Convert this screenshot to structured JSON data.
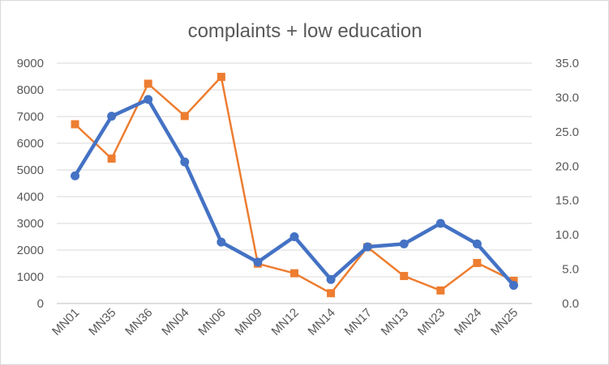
{
  "chart_data": {
    "type": "line",
    "title": "complaints + low education",
    "categories": [
      "MN01",
      "MN35",
      "MN36",
      "MN04",
      "MN06",
      "MN09",
      "MN12",
      "MN14",
      "MN17",
      "MN13",
      "MN23",
      "MN24",
      "MN25"
    ],
    "series": [
      {
        "axis": "left",
        "color": "#4472C4",
        "marker": "circle",
        "values": [
          4780,
          7010,
          7640,
          5300,
          2300,
          1550,
          2500,
          900,
          2120,
          2230,
          3000,
          2230,
          680
        ]
      },
      {
        "axis": "right",
        "color": "#ED7D31",
        "marker": "square",
        "values": [
          26.1,
          21.1,
          32.0,
          27.3,
          33.0,
          5.8,
          4.4,
          1.5,
          8.2,
          4.0,
          1.9,
          5.9,
          3.3
        ]
      }
    ],
    "y_left": {
      "min": 0,
      "max": 9000,
      "ticks": [
        "0",
        "1000",
        "2000",
        "3000",
        "4000",
        "5000",
        "6000",
        "7000",
        "8000",
        "9000"
      ]
    },
    "y_right": {
      "min": 0,
      "max": 35,
      "ticks": [
        "0.0",
        "5.0",
        "10.0",
        "15.0",
        "20.0",
        "25.0",
        "30.0",
        "35.0"
      ]
    },
    "grid": true,
    "legend": "none"
  }
}
